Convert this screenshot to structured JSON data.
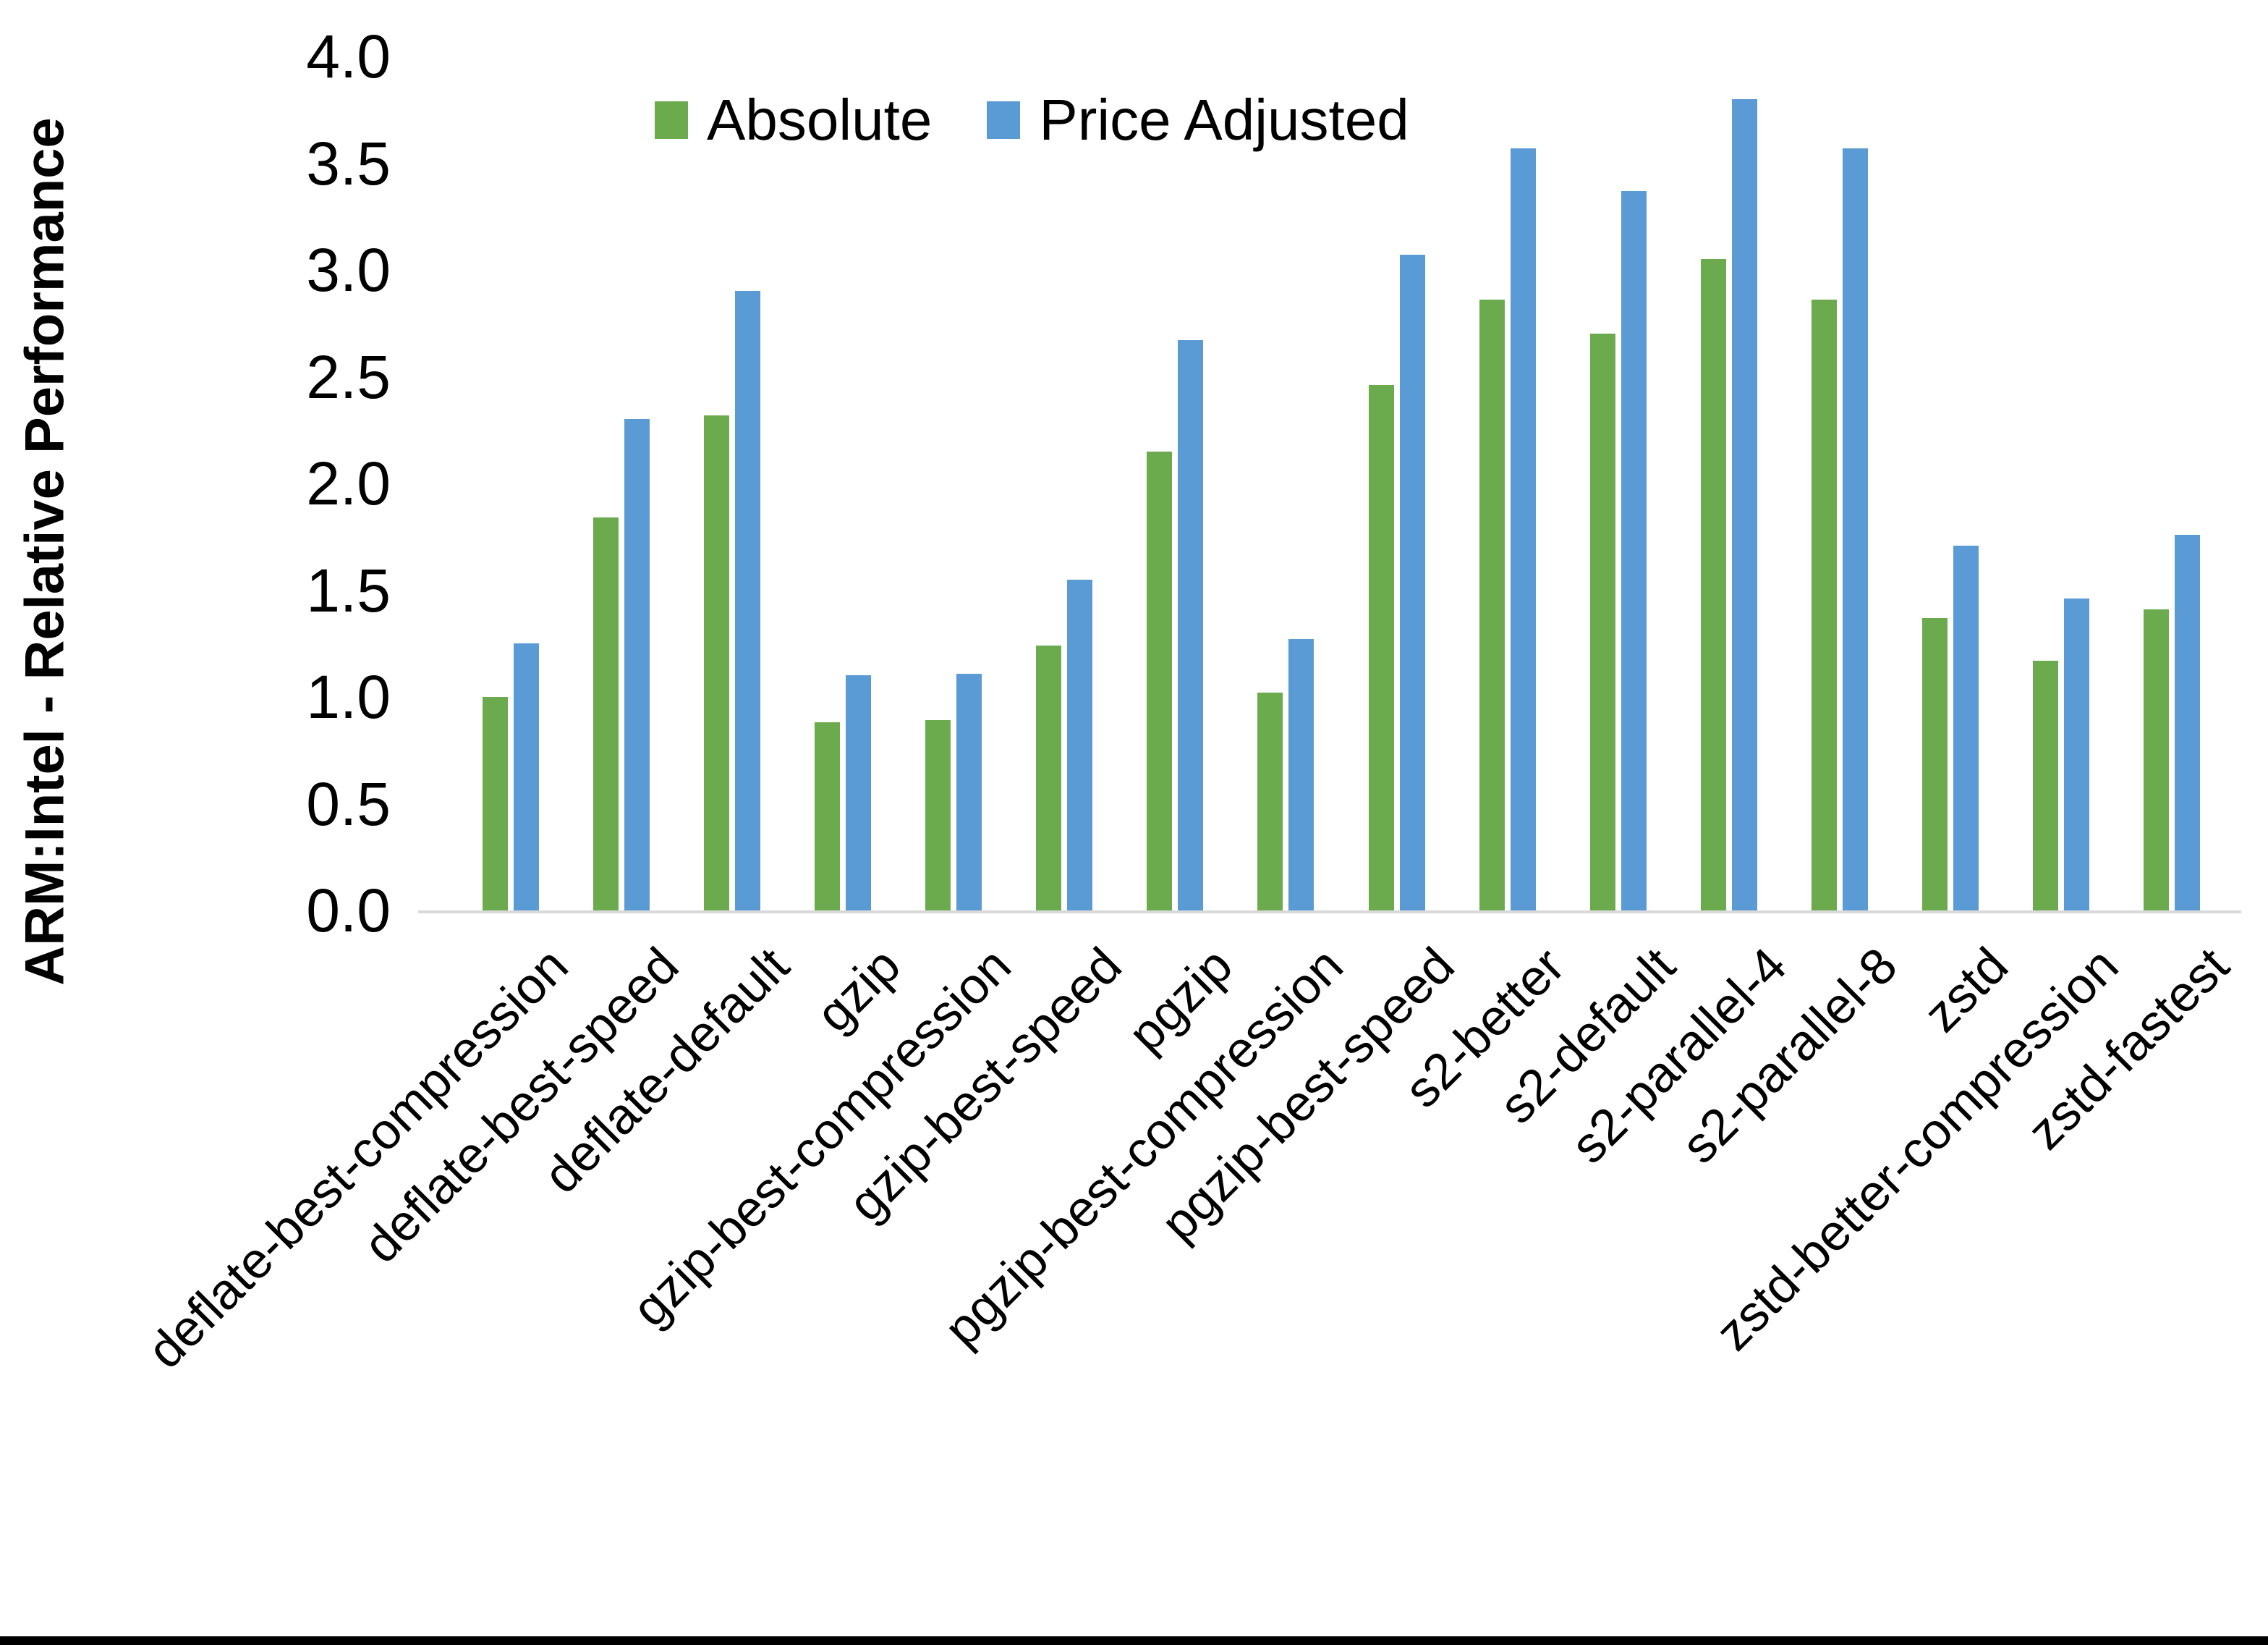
{
  "y_axis": {
    "title": "ARM:Intel - Relative Performance",
    "tick_labels": [
      "0.0",
      "0.5",
      "1.0",
      "1.5",
      "2.0",
      "2.5",
      "3.0",
      "3.5",
      "4.0"
    ]
  },
  "legend": {
    "items": [
      {
        "label": "Absolute",
        "color": "#6CAB4D"
      },
      {
        "label": "Price Adjusted",
        "color": "#5B9BD5"
      }
    ]
  },
  "chart_data": {
    "type": "bar",
    "title": "",
    "xlabel": "",
    "ylabel": "ARM:Intel - Relative Performance",
    "ylim": [
      0.0,
      4.0
    ],
    "ytick_step": 0.5,
    "grid": false,
    "legend_position": "top",
    "x_label_rotation_deg": 45,
    "categories": [
      "deflate-best-compression",
      "deflate-best-speed",
      "deflate-default",
      "gzip",
      "gzip-best-compression",
      "gzip-best-speed",
      "pgzip",
      "pgzip-best-compression",
      "pgzip-best-speed",
      "s2-better",
      "s2-default",
      "s2-parallel-4",
      "s2-parallel-8",
      "zstd",
      "zstd-better-compression",
      "zstd-fastest"
    ],
    "series": [
      {
        "name": "Absolute",
        "color": "#6CAB4D",
        "values": [
          1.0,
          1.84,
          2.32,
          0.88,
          0.89,
          1.24,
          2.15,
          1.02,
          2.46,
          2.86,
          2.7,
          3.05,
          2.86,
          1.37,
          1.17,
          1.41
        ]
      },
      {
        "name": "Price Adjusted",
        "color": "#5B9BD5",
        "values": [
          1.25,
          2.3,
          2.9,
          1.1,
          1.11,
          1.55,
          2.67,
          1.27,
          3.07,
          3.57,
          3.37,
          3.8,
          3.57,
          1.71,
          1.46,
          1.76
        ]
      }
    ]
  }
}
